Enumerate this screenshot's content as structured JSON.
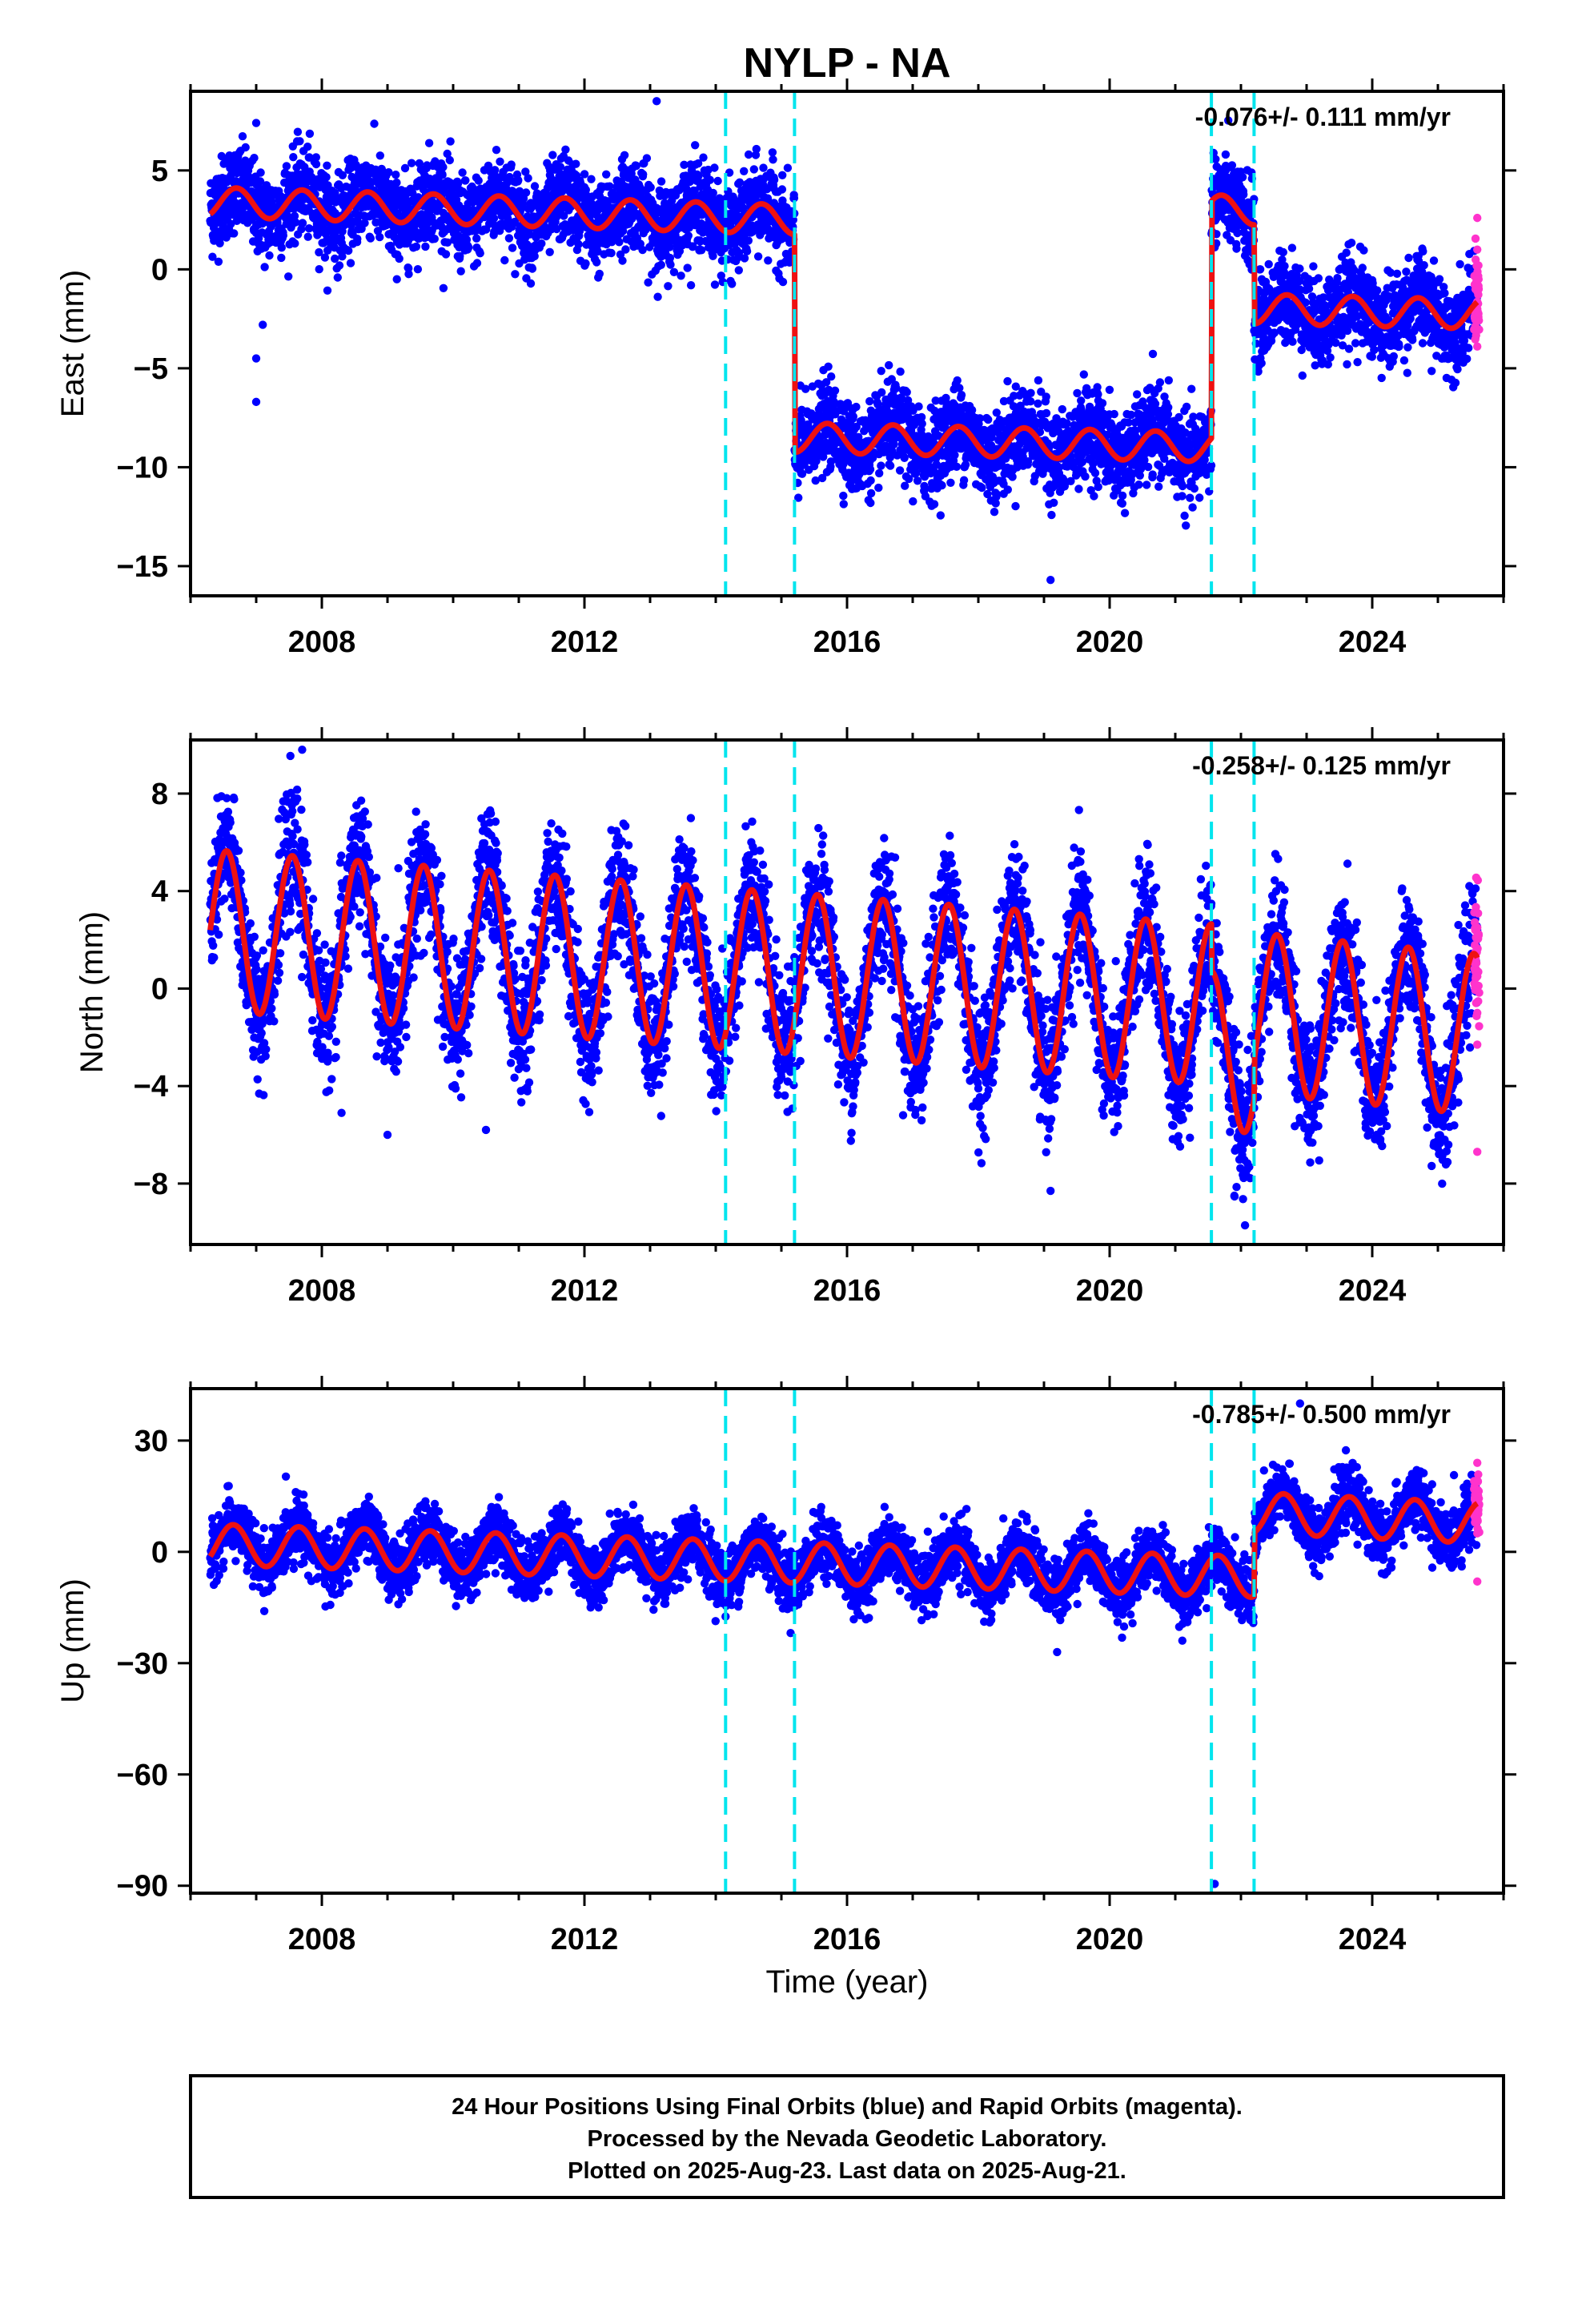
{
  "chart_data": {
    "title": "NYLP - NA",
    "type": "scatter",
    "xlabel": "Time (year)",
    "xlim": [
      2006.0,
      2026.0
    ],
    "x_ticks": [
      "2008",
      "2012",
      "2016",
      "2020",
      "2024"
    ],
    "breaks": [
      2014.15,
      2015.2,
      2021.55,
      2022.2
    ],
    "colors": {
      "final": "#0000ff",
      "rapid": "#ff33cc",
      "model": "#ee1111",
      "breaks": "#00e5ee",
      "frame": "#000000"
    },
    "panels": [
      {
        "id": "east",
        "ylabel": "East (mm)",
        "ylim": [
          -16.5,
          9.0
        ],
        "y_ticks": [
          5,
          0,
          -5,
          -10,
          -15
        ],
        "y_tick_labels": [
          "5",
          "0",
          "−5",
          "−10",
          "−15"
        ],
        "rate": "-0.076+/- 0.111 mm/yr",
        "model": {
          "segments": [
            {
              "start": 2006.3,
              "end": 2015.2,
              "offset": 3.4,
              "trend": -0.1
            },
            {
              "start": 2015.2,
              "end": 2021.55,
              "offset": -8.5,
              "trend": -0.076
            },
            {
              "start": 2021.55,
              "end": 2022.2,
              "offset": 3.0,
              "trend": 0
            },
            {
              "start": 2022.2,
              "end": 2025.6,
              "offset": -2.0,
              "trend": -0.076
            }
          ],
          "amplitude": 0.75,
          "phase": 0.45,
          "scatter": 1.1
        },
        "outliers": [
          [
            2007.0,
            -4.5
          ],
          [
            2007.0,
            -6.7
          ],
          [
            2007.1,
            -2.8
          ],
          [
            2019.1,
            -15.7
          ],
          [
            2013.1,
            8.5
          ],
          [
            2007.0,
            7.4
          ]
        ],
        "rapid": [
          [
            2025.6,
            2.6
          ],
          [
            2025.6,
            1.0
          ],
          [
            2025.6,
            -0.5
          ],
          [
            2025.6,
            -2.0
          ],
          [
            2025.6,
            -3.9
          ]
        ]
      },
      {
        "id": "north",
        "ylabel": "North (mm)",
        "ylim": [
          -10.5,
          10.2
        ],
        "y_ticks": [
          8,
          4,
          0,
          -4,
          -8
        ],
        "y_tick_labels": [
          "8",
          "4",
          "0",
          "−4",
          "−8"
        ],
        "rate": "-0.258+/- 0.125 mm/yr",
        "model": {
          "segments": [
            {
              "start": 2006.3,
              "end": 2021.55,
              "offset": 2.4,
              "trend": -0.2
            },
            {
              "start": 2021.55,
              "end": 2022.2,
              "offset": -2.6,
              "trend": 0
            },
            {
              "start": 2022.2,
              "end": 2025.6,
              "offset": -1.0,
              "trend": -0.258
            }
          ],
          "amplitude": 3.3,
          "phase": 0.3,
          "scatter": 1.3
        },
        "outliers": [
          [
            2007.7,
            9.8
          ],
          [
            2008.3,
            -5.1
          ],
          [
            2009.0,
            -6.0
          ],
          [
            2010.5,
            -5.8
          ],
          [
            2019.1,
            -8.3
          ],
          [
            2021.9,
            -8.5
          ]
        ],
        "rapid": [
          [
            2025.6,
            2.5
          ],
          [
            2025.6,
            0.5
          ],
          [
            2025.6,
            -1.0
          ],
          [
            2025.6,
            -2.3
          ],
          [
            2025.6,
            -6.7
          ]
        ]
      },
      {
        "id": "up",
        "ylabel": "Up (mm)",
        "ylim": [
          -92,
          44
        ],
        "y_ticks": [
          30,
          0,
          -30,
          -60,
          -90
        ],
        "y_tick_labels": [
          "30",
          "0",
          "−30",
          "−60",
          "−90"
        ],
        "rate": "-0.785+/- 0.500 mm/yr",
        "model": {
          "segments": [
            {
              "start": 2006.3,
              "end": 2022.2,
              "offset": 2.0,
              "trend": -0.55
            },
            {
              "start": 2022.2,
              "end": 2025.6,
              "offset": 10.5,
              "trend": -0.785
            }
          ],
          "amplitude": 5.5,
          "phase": 0.4,
          "scatter": 4.0
        },
        "outliers": [
          [
            2021.6,
            -89.5
          ],
          [
            2022.9,
            40
          ],
          [
            2019.2,
            -27
          ]
        ],
        "rapid": [
          [
            2025.6,
            24
          ],
          [
            2025.6,
            15
          ],
          [
            2025.6,
            5
          ],
          [
            2025.6,
            -8
          ]
        ]
      }
    ]
  },
  "caption": {
    "line1": "24 Hour Positions Using Final Orbits (blue) and Rapid Orbits (magenta).",
    "line2": "Processed by the Nevada Geodetic Laboratory.",
    "line3": "Plotted on 2025-Aug-23. Last data on 2025-Aug-21."
  }
}
